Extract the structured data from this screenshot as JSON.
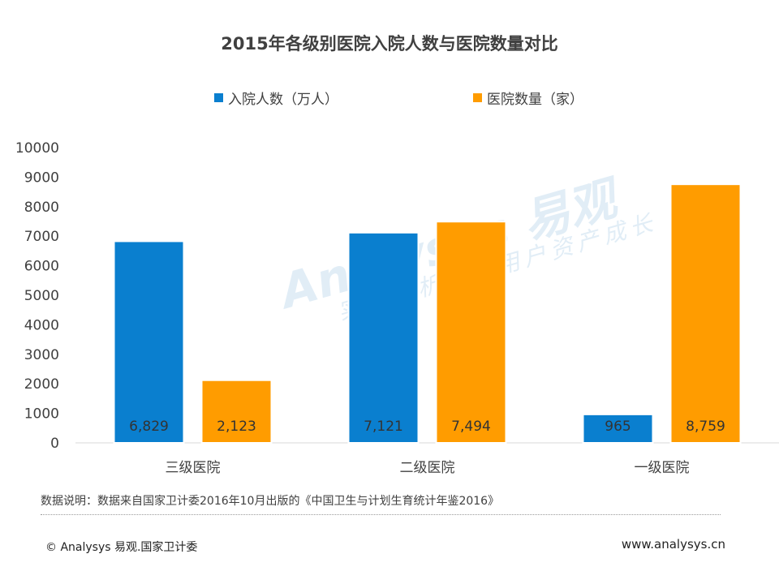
{
  "chart_data": {
    "type": "bar",
    "title": "2015年各级别医院入院人数与医院数量对比",
    "categories": [
      "三级医院",
      "二级医院",
      "一级医院"
    ],
    "series": [
      {
        "name": "入院人数（万人）",
        "values": [
          6829,
          7121,
          965
        ],
        "labels": [
          "6,829",
          "7,121",
          "965"
        ],
        "color": "#0a7fcf"
      },
      {
        "name": "医院数量（家）",
        "values": [
          2123,
          7494,
          8759
        ],
        "labels": [
          "2,123",
          "7,494",
          "8,759"
        ],
        "color": "#ff9c00"
      }
    ],
    "ylim": [
      0,
      10000
    ],
    "yticks": [
      0,
      1000,
      2000,
      3000,
      4000,
      5000,
      6000,
      7000,
      8000,
      9000,
      10000
    ],
    "xlabel": "",
    "ylabel": "",
    "grid": false,
    "legend_position": "top-center"
  },
  "note": "数据说明：数据来自国家卫计委2016年10月出版的《中国卫生与计划生育统计年鉴2016》",
  "footer": {
    "copyright": "© Analysys 易观.国家卫计委",
    "website": "www.analysys.cn"
  },
  "watermark": {
    "main": "Analysys 易观",
    "sub": "实时分析驱动用户资产成长"
  }
}
